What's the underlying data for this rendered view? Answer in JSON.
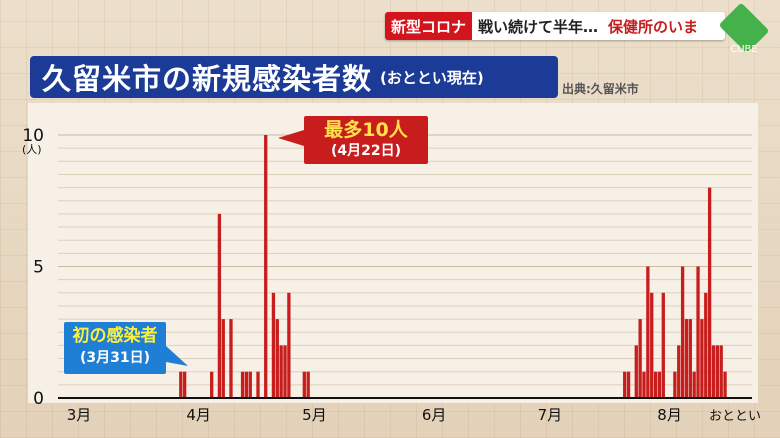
{
  "broadcast": {
    "tag": "新型コロナ",
    "headline": "戦い続けて半年…",
    "topic": "保健所のいま",
    "logo_text": "CUBE"
  },
  "header": {
    "title": "久留米市の新規感染者数",
    "subtitle": "(おととい現在)",
    "source": "出典:久留米市"
  },
  "annotations": {
    "max_line1": "最多10人",
    "max_line2": "(4月22日)",
    "first_line1": "初の感染者",
    "first_line2": "(3月31日)"
  },
  "colors": {
    "bar": "#c81d1d",
    "title_bg": "#1c3b96",
    "first_callout_bg": "#1f7fd4"
  },
  "chart_data": {
    "type": "bar",
    "title": "久留米市の新規感染者数",
    "ylabel": "(人)",
    "ylim": [
      0,
      10
    ],
    "y_ticks": [
      "0",
      "5",
      "10"
    ],
    "x_ticks": [
      "3月",
      "4月",
      "5月",
      "6月",
      "7月",
      "8月",
      "おととい"
    ],
    "x_start": "2020-03-01",
    "x_end": "2020-08-19",
    "series": [
      {
        "name": "新規感染者数",
        "points": [
          [
            "2020-03-31",
            1
          ],
          [
            "2020-04-01",
            1
          ],
          [
            "2020-04-08",
            1
          ],
          [
            "2020-04-10",
            7
          ],
          [
            "2020-04-11",
            3
          ],
          [
            "2020-04-13",
            3
          ],
          [
            "2020-04-16",
            1
          ],
          [
            "2020-04-17",
            1
          ],
          [
            "2020-04-18",
            1
          ],
          [
            "2020-04-20",
            1
          ],
          [
            "2020-04-22",
            10
          ],
          [
            "2020-04-24",
            4
          ],
          [
            "2020-04-25",
            3
          ],
          [
            "2020-04-26",
            2
          ],
          [
            "2020-04-27",
            2
          ],
          [
            "2020-04-28",
            4
          ],
          [
            "2020-05-02",
            1
          ],
          [
            "2020-05-03",
            1
          ],
          [
            "2020-07-24",
            1
          ],
          [
            "2020-07-25",
            1
          ],
          [
            "2020-07-27",
            2
          ],
          [
            "2020-07-28",
            3
          ],
          [
            "2020-07-29",
            1
          ],
          [
            "2020-07-30",
            5
          ],
          [
            "2020-07-31",
            4
          ],
          [
            "2020-08-01",
            1
          ],
          [
            "2020-08-02",
            1
          ],
          [
            "2020-08-03",
            4
          ],
          [
            "2020-08-06",
            1
          ],
          [
            "2020-08-07",
            2
          ],
          [
            "2020-08-08",
            5
          ],
          [
            "2020-08-09",
            3
          ],
          [
            "2020-08-10",
            3
          ],
          [
            "2020-08-11",
            1
          ],
          [
            "2020-08-12",
            5
          ],
          [
            "2020-08-13",
            3
          ],
          [
            "2020-08-14",
            4
          ],
          [
            "2020-08-15",
            8
          ],
          [
            "2020-08-16",
            2
          ],
          [
            "2020-08-17",
            2
          ],
          [
            "2020-08-18",
            2
          ],
          [
            "2020-08-19",
            1
          ]
        ]
      }
    ]
  }
}
